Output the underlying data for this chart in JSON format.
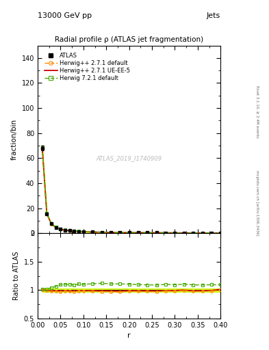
{
  "title": "Radial profile ρ (ATLAS jet fragmentation)",
  "top_left_label": "13000 GeV pp",
  "top_right_label": "Jets",
  "right_label_top": "Rivet 3.1.10, ≥ 2.4M events",
  "right_label_bottom": "mcplots.cern.ch [arXiv:1306.3436]",
  "watermark": "ATLAS_2019_I1740909",
  "ylabel_main": "fraction/bin",
  "ylabel_ratio": "Ratio to ATLAS",
  "xlabel": "r",
  "ylim_main": [
    0,
    150
  ],
  "ylim_ratio": [
    0.5,
    2.0
  ],
  "yticks_main": [
    0,
    20,
    40,
    60,
    80,
    100,
    120,
    140
  ],
  "yticks_ratio": [
    0.5,
    1.0,
    1.5,
    2.0
  ],
  "r_values": [
    0.01,
    0.02,
    0.03,
    0.04,
    0.05,
    0.06,
    0.07,
    0.08,
    0.09,
    0.1,
    0.12,
    0.14,
    0.16,
    0.18,
    0.2,
    0.22,
    0.24,
    0.26,
    0.28,
    0.3,
    0.32,
    0.34,
    0.36,
    0.38,
    0.4
  ],
  "atlas_y": [
    68.0,
    15.5,
    7.5,
    4.5,
    3.2,
    2.5,
    2.0,
    1.7,
    1.4,
    1.2,
    0.9,
    0.75,
    0.65,
    0.55,
    0.48,
    0.42,
    0.38,
    0.34,
    0.3,
    0.27,
    0.24,
    0.22,
    0.2,
    0.18,
    0.16
  ],
  "herwig_default_y": [
    68.5,
    15.3,
    7.3,
    4.4,
    3.1,
    2.45,
    1.95,
    1.65,
    1.38,
    1.18,
    0.88,
    0.73,
    0.63,
    0.53,
    0.47,
    0.41,
    0.37,
    0.33,
    0.295,
    0.265,
    0.238,
    0.215,
    0.196,
    0.177,
    0.16
  ],
  "herwig_ueee5_y": [
    68.2,
    15.4,
    7.4,
    4.45,
    3.15,
    2.48,
    1.97,
    1.67,
    1.39,
    1.19,
    0.89,
    0.74,
    0.64,
    0.54,
    0.475,
    0.415,
    0.375,
    0.335,
    0.298,
    0.268,
    0.24,
    0.217,
    0.198,
    0.179,
    0.162
  ],
  "herwig721_y": [
    68.8,
    15.8,
    7.8,
    4.8,
    3.5,
    2.75,
    2.2,
    1.85,
    1.55,
    1.32,
    1.0,
    0.84,
    0.72,
    0.61,
    0.53,
    0.46,
    0.415,
    0.37,
    0.33,
    0.295,
    0.265,
    0.24,
    0.218,
    0.197,
    0.175
  ],
  "ratio_herwig_default": [
    1.0,
    0.99,
    0.975,
    0.978,
    0.97,
    0.98,
    0.975,
    0.97,
    0.985,
    0.983,
    0.978,
    0.973,
    0.969,
    0.964,
    0.979,
    0.976,
    0.974,
    0.971,
    0.983,
    0.981,
    0.992,
    0.977,
    0.98,
    0.983,
    1.0
  ],
  "ratio_herwig_ueee5": [
    1.0,
    0.994,
    0.987,
    0.989,
    0.984,
    0.992,
    0.985,
    0.982,
    0.993,
    0.992,
    0.989,
    0.987,
    0.985,
    0.982,
    0.99,
    0.988,
    0.987,
    0.985,
    0.993,
    0.993,
    1.0,
    0.986,
    0.99,
    0.994,
    1.012
  ],
  "ratio_herwig721": [
    1.012,
    1.02,
    1.04,
    1.067,
    1.094,
    1.1,
    1.1,
    1.088,
    1.107,
    1.1,
    1.111,
    1.12,
    1.108,
    1.109,
    1.104,
    1.095,
    1.092,
    1.088,
    1.1,
    1.093,
    1.104,
    1.091,
    1.09,
    1.094,
    1.094
  ],
  "color_atlas": "#000000",
  "color_herwig_default": "#ff8800",
  "color_herwig_ueee5": "#cc0000",
  "color_herwig721": "#44aa00",
  "band_color": "#ccff00",
  "background_color": "#ffffff"
}
